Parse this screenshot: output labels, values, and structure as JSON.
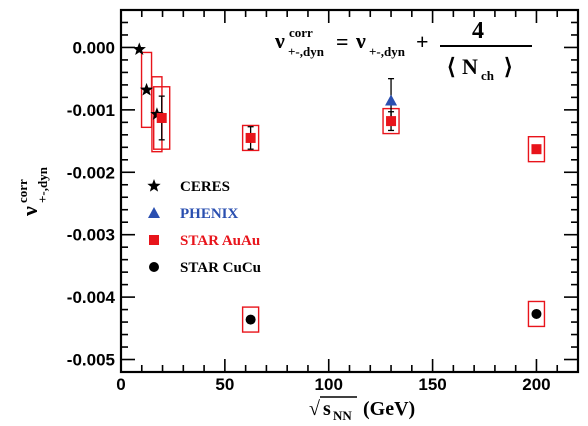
{
  "chart_data": {
    "type": "scatter",
    "xlabel": "√s_NN (GeV)",
    "xlabel_parts": {
      "sqrt": "√",
      "s": "s",
      "nn": "NN",
      "unit": "(GeV)"
    },
    "ylabel": "ν^corr +-,dyn",
    "ylabel_parts": {
      "nu": "ν",
      "sup": "corr",
      "sub": "+-,dyn"
    },
    "formula": {
      "lhs": "ν",
      "lhs_sup": "corr",
      "lhs_sub": "+-,dyn",
      "eq": "=",
      "rhs": "ν",
      "rhs_sub": "+-,dyn",
      "plus": "+",
      "num": "4",
      "den_open": "⟨",
      "den": "N",
      "den_sub": "ch",
      "den_close": "⟩"
    },
    "xlim": [
      0,
      220
    ],
    "ylim": [
      -0.0052,
      0.0006
    ],
    "xticks": [
      0,
      50,
      100,
      150,
      200
    ],
    "xtick_labels": [
      "0",
      "50",
      "100",
      "150",
      "200"
    ],
    "yticks": [
      0.0,
      -0.001,
      -0.002,
      -0.003,
      -0.004,
      -0.005
    ],
    "ytick_labels": [
      "0.000",
      "-0.001",
      "-0.002",
      "-0.003",
      "-0.004",
      "-0.005"
    ],
    "grid": false,
    "legend_position": "middle-left",
    "series": [
      {
        "name": "CERES",
        "marker": "star",
        "color": "#000000",
        "points": [
          {
            "x": 8.8,
            "y": -3e-05
          },
          {
            "x": 12.3,
            "y": -0.00068
          },
          {
            "x": 17.3,
            "y": -0.00107
          }
        ]
      },
      {
        "name": "PHENIX",
        "marker": "triangle",
        "color": "#2a4fb0",
        "points": [
          {
            "x": 130,
            "y": -0.00085,
            "err": 0.00035
          }
        ]
      },
      {
        "name": "STAR AuAu",
        "marker": "square",
        "color": "#e8141b",
        "points": [
          {
            "x": 19.6,
            "y": -0.00113,
            "err": 0.00035,
            "sys": 0.0005
          },
          {
            "x": 62.4,
            "y": -0.00145,
            "err": 0.00018,
            "sys": 0.0002
          },
          {
            "x": 130,
            "y": -0.00118,
            "err": 0.00015,
            "sys": 0.0002
          },
          {
            "x": 200,
            "y": -0.00163,
            "err": 5e-05,
            "sys": 0.0002
          }
        ]
      },
      {
        "name": "STAR CuCu",
        "marker": "circle",
        "color": "#000000",
        "points": [
          {
            "x": 62.4,
            "y": -0.00436,
            "sys": 0.0002
          },
          {
            "x": 200,
            "y": -0.00427,
            "sys": 0.0002
          }
        ]
      }
    ],
    "syst_boxes": [
      {
        "x": 12.3,
        "y": -0.00068,
        "half_height": 0.0006,
        "color": "#e8141b"
      },
      {
        "x": 17.3,
        "y": -0.00107,
        "half_height": 0.0006,
        "color": "#e8141b"
      }
    ]
  }
}
